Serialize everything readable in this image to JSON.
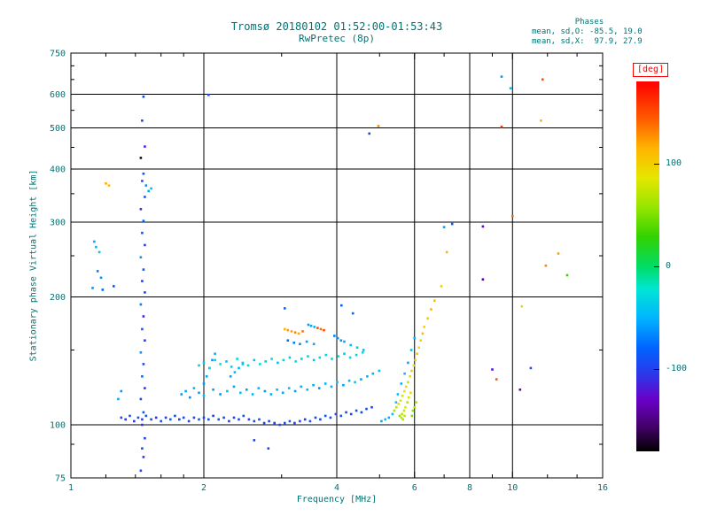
{
  "title": "Tromsø 20180102 01:52:00-01:53:43",
  "subtitle": "RwPretec (8p)",
  "stats": {
    "header": "Phases",
    "line_o": "mean, sd,O: -85.5, 19.0",
    "line_x": "mean, sd,X:  97.9, 27.9"
  },
  "colors": {
    "accent_text": "#007373",
    "axis": "#000000",
    "colorbar_title": "#ff0000",
    "background": "#ffffff"
  },
  "chart_data": {
    "type": "scatter",
    "title": "Tromsø 20180102 01:52:00-01:53:43 / RwPretec (8p)",
    "xlabel": "Frequency [MHz]",
    "ylabel": "Stationary phase Virtual Height [km]",
    "x_scale": "log",
    "y_scale": "log",
    "xlim": [
      1,
      16
    ],
    "ylim": [
      75,
      750
    ],
    "x_ticks": [
      1,
      2,
      4,
      6,
      8,
      10,
      16
    ],
    "y_ticks": [
      75,
      100,
      200,
      300,
      400,
      500,
      600,
      750
    ],
    "x_minor_ticks": [
      1.2,
      1.4,
      1.6,
      1.8,
      3,
      5,
      7,
      9,
      12,
      14
    ],
    "y_minor_ticks": [
      90,
      150,
      250,
      350,
      450,
      550,
      650,
      700
    ],
    "grid": true,
    "colorbar": {
      "title": "[deg]",
      "unit": "deg",
      "range": [
        -180,
        180
      ],
      "ticks": [
        100,
        0,
        -100
      ],
      "stops": [
        [
          0.0,
          "#000000"
        ],
        [
          0.07,
          "#46006e"
        ],
        [
          0.14,
          "#6a00c8"
        ],
        [
          0.2,
          "#3232e6"
        ],
        [
          0.28,
          "#0064ff"
        ],
        [
          0.36,
          "#00b4ff"
        ],
        [
          0.44,
          "#00e6d2"
        ],
        [
          0.5,
          "#00dc64"
        ],
        [
          0.58,
          "#32d200"
        ],
        [
          0.66,
          "#96e600"
        ],
        [
          0.74,
          "#e6e600"
        ],
        [
          0.82,
          "#ffb400"
        ],
        [
          0.9,
          "#ff5a00"
        ],
        [
          1.0,
          "#ff0000"
        ]
      ]
    },
    "point_format": "[frequency_MHz, virtual_height_km, phase_deg]",
    "points": [
      [
        1.3,
        104,
        -95
      ],
      [
        1.33,
        103,
        -105
      ],
      [
        1.36,
        105,
        -88
      ],
      [
        1.39,
        102,
        -110
      ],
      [
        1.42,
        104,
        -92
      ],
      [
        1.45,
        103,
        -100
      ],
      [
        1.48,
        105,
        -85
      ],
      [
        1.52,
        103,
        -95
      ],
      [
        1.56,
        104,
        -108
      ],
      [
        1.6,
        102,
        -90
      ],
      [
        1.64,
        104,
        -98
      ],
      [
        1.68,
        103,
        -82
      ],
      [
        1.72,
        105,
        -95
      ],
      [
        1.76,
        103,
        -105
      ],
      [
        1.8,
        104,
        -90
      ],
      [
        1.85,
        102,
        -100
      ],
      [
        1.9,
        104,
        -95
      ],
      [
        1.95,
        103,
        -85
      ],
      [
        2.0,
        104,
        -98
      ],
      [
        2.05,
        103,
        -92
      ],
      [
        2.1,
        105,
        -105
      ],
      [
        2.16,
        103,
        -88
      ],
      [
        2.22,
        104,
        -95
      ],
      [
        2.28,
        102,
        -100
      ],
      [
        2.34,
        104,
        -90
      ],
      [
        2.4,
        103,
        -97
      ],
      [
        2.46,
        105,
        -85
      ],
      [
        2.53,
        103,
        -102
      ],
      [
        2.6,
        102,
        -95
      ],
      [
        2.67,
        103,
        -88
      ],
      [
        2.74,
        101,
        -100
      ],
      [
        2.81,
        102,
        -93
      ],
      [
        2.89,
        101,
        -105
      ],
      [
        2.97,
        100,
        -90
      ],
      [
        3.05,
        101,
        -97
      ],
      [
        3.13,
        102,
        -85
      ],
      [
        3.21,
        101,
        -100
      ],
      [
        3.3,
        102,
        -92
      ],
      [
        3.39,
        103,
        -105
      ],
      [
        3.48,
        102,
        -88
      ],
      [
        3.58,
        104,
        -95
      ],
      [
        3.67,
        103,
        -100
      ],
      [
        3.77,
        105,
        -85
      ],
      [
        3.87,
        104,
        -93
      ],
      [
        3.98,
        106,
        -98
      ],
      [
        4.09,
        105,
        -90
      ],
      [
        4.2,
        107,
        -95
      ],
      [
        4.31,
        106,
        -102
      ],
      [
        4.43,
        108,
        -88
      ],
      [
        4.55,
        107,
        -95
      ],
      [
        4.67,
        109,
        -92
      ],
      [
        4.8,
        110,
        -98
      ],
      [
        1.78,
        118,
        -60
      ],
      [
        1.82,
        120,
        -55
      ],
      [
        1.86,
        116,
        -65
      ],
      [
        1.9,
        122,
        -50
      ],
      [
        1.95,
        119,
        -58
      ],
      [
        2.0,
        117,
        -45
      ],
      [
        2.0,
        125,
        -62
      ],
      [
        2.03,
        130,
        -55
      ],
      [
        2.06,
        136,
        -48
      ],
      [
        2.09,
        142,
        -60
      ],
      [
        2.12,
        147,
        -52
      ],
      [
        2.1,
        121,
        -58
      ],
      [
        2.18,
        118,
        -62
      ],
      [
        2.26,
        120,
        -48
      ],
      [
        2.34,
        123,
        -55
      ],
      [
        2.42,
        119,
        -42
      ],
      [
        2.5,
        121,
        -58
      ],
      [
        2.58,
        118,
        -50
      ],
      [
        2.66,
        122,
        -45
      ],
      [
        2.75,
        120,
        -60
      ],
      [
        2.84,
        118,
        -52
      ],
      [
        2.93,
        121,
        -48
      ],
      [
        3.02,
        119,
        -55
      ],
      [
        3.12,
        122,
        -42
      ],
      [
        3.22,
        120,
        -58
      ],
      [
        3.32,
        123,
        -50
      ],
      [
        3.43,
        121,
        -45
      ],
      [
        3.54,
        124,
        -55
      ],
      [
        3.65,
        122,
        -60
      ],
      [
        3.77,
        125,
        -48
      ],
      [
        3.89,
        123,
        -52
      ],
      [
        4.01,
        126,
        -45
      ],
      [
        4.14,
        124,
        -58
      ],
      [
        4.27,
        127,
        -50
      ],
      [
        4.4,
        126,
        -42
      ],
      [
        4.54,
        128,
        -55
      ],
      [
        4.69,
        130,
        -48
      ],
      [
        4.83,
        132,
        -52
      ],
      [
        4.99,
        134,
        -45
      ],
      [
        1.95,
        138,
        -35
      ],
      [
        2.0,
        140,
        -40
      ],
      [
        2.06,
        136,
        -30
      ],
      [
        2.12,
        142,
        -38
      ],
      [
        2.18,
        139,
        -25
      ],
      [
        2.25,
        141,
        -42
      ],
      [
        2.31,
        137,
        -32
      ],
      [
        2.38,
        143,
        -28
      ],
      [
        2.3,
        130,
        -55
      ],
      [
        2.35,
        133,
        -48
      ],
      [
        2.4,
        136,
        -52
      ],
      [
        2.45,
        139,
        -45
      ],
      [
        2.45,
        140,
        -35
      ],
      [
        2.52,
        138,
        -30
      ],
      [
        2.6,
        142,
        -40
      ],
      [
        2.68,
        139,
        -25
      ],
      [
        2.76,
        141,
        -35
      ],
      [
        2.85,
        143,
        -28
      ],
      [
        2.94,
        140,
        -45
      ],
      [
        3.03,
        142,
        -32
      ],
      [
        3.13,
        144,
        -38
      ],
      [
        3.23,
        141,
        -25
      ],
      [
        3.33,
        143,
        -35
      ],
      [
        3.44,
        145,
        -30
      ],
      [
        3.55,
        142,
        -40
      ],
      [
        3.66,
        144,
        -28
      ],
      [
        3.78,
        146,
        -35
      ],
      [
        3.9,
        143,
        -32
      ],
      [
        4.03,
        145,
        -25
      ],
      [
        4.16,
        147,
        -38
      ],
      [
        4.29,
        144,
        -30
      ],
      [
        4.43,
        146,
        -35
      ],
      [
        4.58,
        148,
        -28
      ],
      [
        3.05,
        168,
        115
      ],
      [
        3.1,
        167,
        125
      ],
      [
        3.16,
        166,
        120
      ],
      [
        3.22,
        165,
        130
      ],
      [
        3.28,
        164,
        118
      ],
      [
        3.35,
        166,
        135
      ],
      [
        3.45,
        172,
        -60
      ],
      [
        3.5,
        171,
        -55
      ],
      [
        3.56,
        170,
        -50
      ],
      [
        3.62,
        169,
        148
      ],
      [
        3.68,
        168,
        140
      ],
      [
        3.74,
        167,
        152
      ],
      [
        3.95,
        162,
        -70
      ],
      [
        4.02,
        160,
        -65
      ],
      [
        4.09,
        158,
        -60
      ],
      [
        4.16,
        157,
        -55
      ],
      [
        4.3,
        154,
        -45
      ],
      [
        4.45,
        152,
        -38
      ],
      [
        4.6,
        150,
        -50
      ],
      [
        3.1,
        158,
        -75
      ],
      [
        3.2,
        156,
        -70
      ],
      [
        3.3,
        155,
        -65
      ],
      [
        3.42,
        157,
        -60
      ],
      [
        3.55,
        155,
        -55
      ],
      [
        5.4,
        108,
        62
      ],
      [
        5.46,
        110,
        72
      ],
      [
        5.52,
        112,
        82
      ],
      [
        5.58,
        114,
        90
      ],
      [
        5.63,
        117,
        76
      ],
      [
        5.69,
        120,
        86
      ],
      [
        5.74,
        123,
        95
      ],
      [
        5.8,
        126,
        72
      ],
      [
        5.86,
        130,
        92
      ],
      [
        5.91,
        134,
        100
      ],
      [
        5.97,
        138,
        86
      ],
      [
        6.03,
        142,
        96
      ],
      [
        6.08,
        147,
        104
      ],
      [
        6.14,
        152,
        92
      ],
      [
        6.2,
        158,
        100
      ],
      [
        6.26,
        164,
        110
      ],
      [
        6.31,
        170,
        96
      ],
      [
        6.43,
        178,
        104
      ],
      [
        6.54,
        187,
        112
      ],
      [
        6.66,
        196,
        108
      ],
      [
        5.62,
        106,
        66
      ],
      [
        5.68,
        108,
        76
      ],
      [
        5.72,
        110,
        85
      ],
      [
        5.78,
        113,
        70
      ],
      [
        5.82,
        116,
        80
      ],
      [
        5.88,
        119,
        90
      ],
      [
        5.55,
        105,
        60
      ],
      [
        5.6,
        104,
        70
      ],
      [
        5.65,
        103,
        64
      ],
      [
        5.7,
        105,
        74
      ],
      [
        5.5,
        118,
        -42
      ],
      [
        5.6,
        125,
        -50
      ],
      [
        5.7,
        132,
        -46
      ],
      [
        5.8,
        140,
        -55
      ],
      [
        5.9,
        150,
        -42
      ],
      [
        6.0,
        160,
        -50
      ],
      [
        5.45,
        113,
        -38
      ],
      [
        5.35,
        106,
        -45
      ],
      [
        5.25,
        104,
        -52
      ],
      [
        5.15,
        103,
        -46
      ],
      [
        5.05,
        102,
        -55
      ],
      [
        5.95,
        108,
        55
      ],
      [
        6.0,
        110,
        65
      ],
      [
        6.05,
        113,
        60
      ],
      [
        5.92,
        105,
        50
      ],
      [
        1.44,
        78,
        -95
      ],
      [
        1.46,
        84,
        -105
      ],
      [
        1.45,
        88,
        -90
      ],
      [
        1.47,
        93,
        -100
      ],
      [
        1.45,
        100,
        -110
      ],
      [
        1.46,
        107,
        -85
      ],
      [
        1.44,
        115,
        -95
      ],
      [
        1.47,
        122,
        -105
      ],
      [
        1.45,
        130,
        -75
      ],
      [
        1.46,
        139,
        -95
      ],
      [
        1.44,
        148,
        -60
      ],
      [
        1.47,
        158,
        -100
      ],
      [
        1.45,
        168,
        -88
      ],
      [
        1.46,
        180,
        -110
      ],
      [
        1.44,
        192,
        -70
      ],
      [
        1.47,
        205,
        -95
      ],
      [
        1.45,
        218,
        -105
      ],
      [
        1.46,
        232,
        -85
      ],
      [
        1.44,
        248,
        -60
      ],
      [
        1.47,
        265,
        -100
      ],
      [
        1.45,
        283,
        -92
      ],
      [
        1.46,
        302,
        -78
      ],
      [
        1.44,
        322,
        -105
      ],
      [
        1.47,
        344,
        -88
      ],
      [
        1.5,
        355,
        -55
      ],
      [
        1.52,
        360,
        -48
      ],
      [
        1.48,
        366,
        -60
      ],
      [
        1.45,
        375,
        -95
      ],
      [
        1.46,
        390,
        -85
      ],
      [
        1.44,
        425,
        -170
      ],
      [
        1.47,
        452,
        -110
      ],
      [
        1.45,
        520,
        -100
      ],
      [
        1.46,
        592,
        -95
      ],
      [
        1.13,
        270,
        -55
      ],
      [
        1.14,
        262,
        -48
      ],
      [
        1.16,
        255,
        -42
      ],
      [
        1.15,
        230,
        -68
      ],
      [
        1.17,
        222,
        -62
      ],
      [
        1.2,
        370,
        118
      ],
      [
        1.22,
        366,
        108
      ],
      [
        1.18,
        208,
        -78
      ],
      [
        1.25,
        212,
        -88
      ],
      [
        1.28,
        115,
        -55
      ],
      [
        1.3,
        120,
        -60
      ],
      [
        1.12,
        210,
        -60
      ],
      [
        9.45,
        660,
        -60
      ],
      [
        9.9,
        620,
        -45
      ],
      [
        11.7,
        650,
        150
      ],
      [
        4.97,
        505,
        128
      ],
      [
        9.45,
        503,
        155
      ],
      [
        11.6,
        520,
        115
      ],
      [
        4.74,
        485,
        -95
      ],
      [
        8.57,
        293,
        -130
      ],
      [
        7.3,
        297,
        -85
      ],
      [
        12.7,
        253,
        120
      ],
      [
        11.9,
        237,
        130
      ],
      [
        13.3,
        225,
        30
      ],
      [
        8.57,
        220,
        -140
      ],
      [
        10.5,
        190,
        95
      ],
      [
        11.0,
        136,
        -90
      ],
      [
        10.4,
        121,
        -130
      ],
      [
        2.05,
        598,
        -95
      ],
      [
        3.05,
        188,
        -80
      ],
      [
        4.1,
        191,
        -85
      ],
      [
        4.35,
        183,
        -78
      ],
      [
        7.1,
        255,
        115
      ],
      [
        7.0,
        292,
        -58
      ],
      [
        6.9,
        212,
        98
      ],
      [
        10.0,
        310,
        140
      ],
      [
        2.6,
        92,
        -100
      ],
      [
        2.8,
        88,
        -95
      ],
      [
        9.0,
        135,
        -120
      ],
      [
        9.2,
        128,
        145
      ]
    ]
  }
}
